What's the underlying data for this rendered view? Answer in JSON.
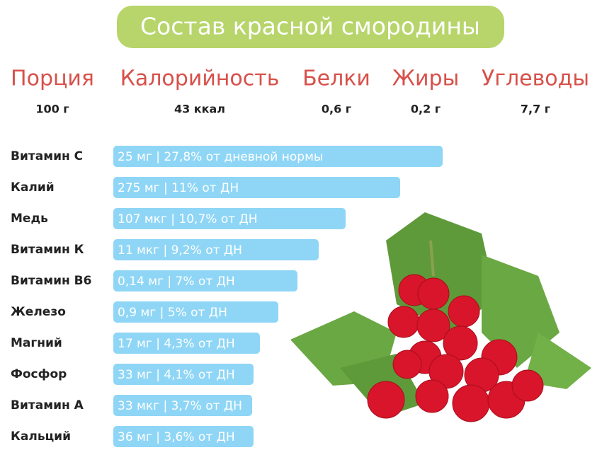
{
  "title": "Состав красной смородины",
  "summary": [
    {
      "label": "Порция",
      "value": "100 г"
    },
    {
      "label": "Калорийность",
      "value": "43 ккал"
    },
    {
      "label": "Белки",
      "value": "0,6 г"
    },
    {
      "label": "Жиры",
      "value": "0,2 г"
    },
    {
      "label": "Углеводы",
      "value": "7,7 г"
    }
  ],
  "nutrients": [
    {
      "name": "Витамин С",
      "label": "25 мг | 27,8% от дневной нормы"
    },
    {
      "name": "Калий",
      "label": "275 мг | 11% от ДН"
    },
    {
      "name": "Медь",
      "label": "107 мкг | 10,7% от ДН"
    },
    {
      "name": "Витамин К",
      "label": "11 мкг | 9,2% от ДН"
    },
    {
      "name": "Витамин В6",
      "label": "0,14 мг | 7% от ДН"
    },
    {
      "name": "Железо",
      "label": "0,9 мг | 5% от ДН"
    },
    {
      "name": "Магний",
      "label": "17 мг | 4,3% от ДН"
    },
    {
      "name": "Фосфор",
      "label": "33 мг | 4,1% от ДН"
    },
    {
      "name": "Витамин А",
      "label": "33 мкг | 3,7% от ДН"
    },
    {
      "name": "Кальций",
      "label": "36 мг | 3,6% от ДН"
    }
  ]
}
